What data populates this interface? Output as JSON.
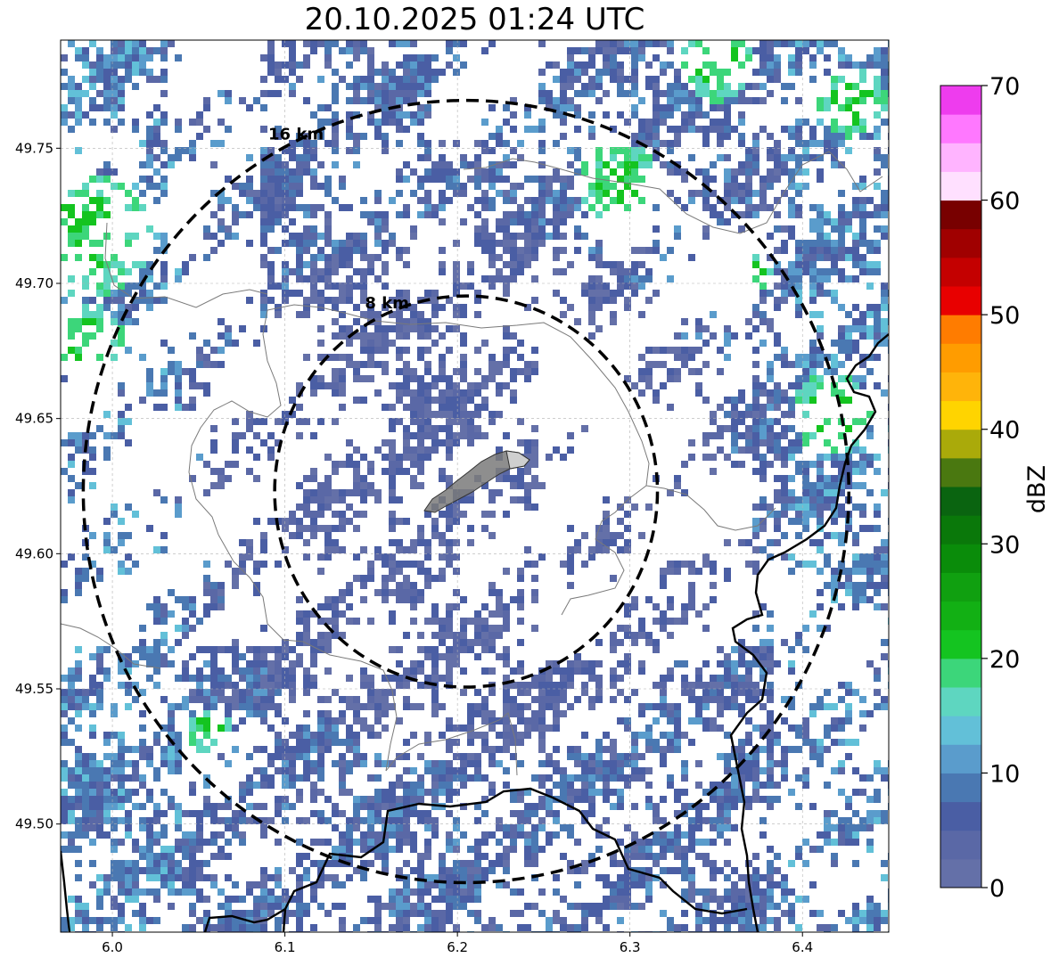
{
  "map": {
    "title": "20.10.2025 01:24 UTC",
    "x_axis": {
      "range": [
        5.97,
        6.45
      ],
      "ticks": [
        6.0,
        6.1,
        6.2,
        6.3,
        6.4
      ],
      "tick_labels": [
        "6.0",
        "6.1",
        "6.2",
        "6.3",
        "6.4"
      ]
    },
    "y_axis": {
      "range": [
        49.46,
        49.79
      ],
      "ticks": [
        49.5,
        49.55,
        49.6,
        49.65,
        49.7,
        49.75
      ],
      "tick_labels": [
        "49.50",
        "49.55",
        "49.60",
        "49.65",
        "49.70",
        "49.75"
      ]
    },
    "grid": true,
    "center": {
      "lon": 6.205,
      "lat": 49.623
    },
    "range_rings": [
      {
        "label": "8 km",
        "radius_km": 8
      },
      {
        "label": "16 km",
        "radius_km": 16
      }
    ],
    "colorbar": {
      "label": "dBZ",
      "range": [
        0,
        70
      ],
      "ticks": [
        0,
        10,
        20,
        30,
        40,
        50,
        60,
        70
      ],
      "tick_labels": [
        "0",
        "10",
        "20",
        "30",
        "40",
        "50",
        "60",
        "70"
      ],
      "colors": [
        "#6470a8",
        "#5a68a6",
        "#4a5ea4",
        "#4a78b2",
        "#5a9ccc",
        "#62c0d8",
        "#5ed6c0",
        "#3cd67a",
        "#14c420",
        "#12b014",
        "#10a010",
        "#0a8c0a",
        "#0a780a",
        "#0a6410",
        "#4a7810",
        "#aaaa0a",
        "#ffd400",
        "#ffb40a",
        "#ff9c00",
        "#ff7c00",
        "#e80000",
        "#c40000",
        "#a00000",
        "#780000",
        "#ffe0ff",
        "#ffb4ff",
        "#ff78ff",
        "#ee3cee"
      ]
    }
  }
}
